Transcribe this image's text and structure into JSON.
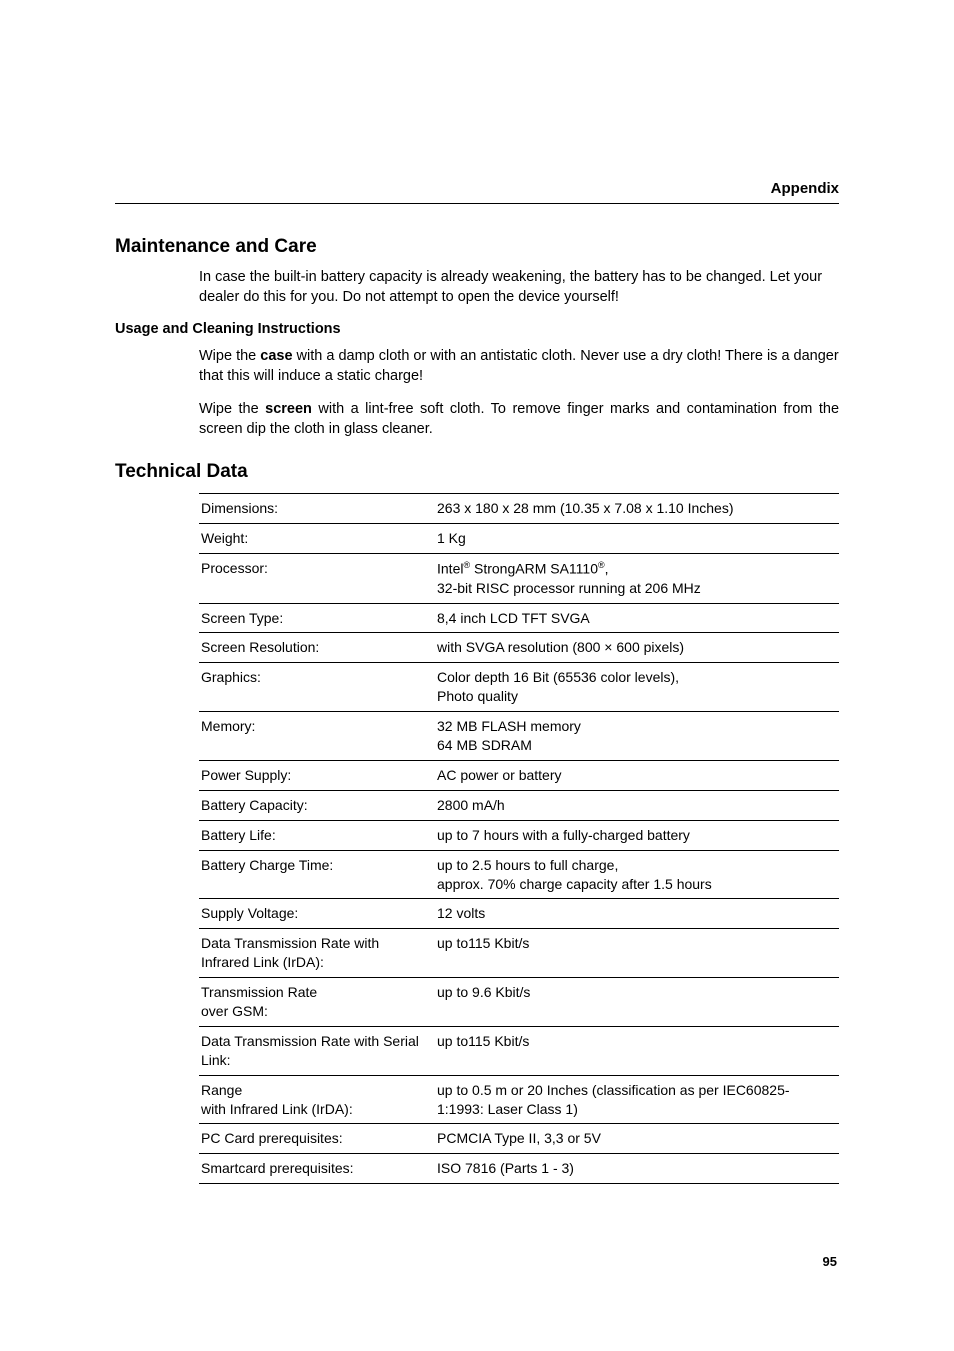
{
  "header": {
    "label": "Appendix"
  },
  "section1": {
    "title": "Maintenance and Care",
    "intro": "In case the built-in battery capacity is already weakening, the battery has to be changed. Let your dealer do this for you. Do not attempt to open the device yourself!",
    "sub_heading": "Usage and Cleaning Instructions",
    "p1_a": "Wipe the ",
    "p1_bold": "case",
    "p1_b": " with a damp cloth or with an antistatic cloth. Never use a dry cloth! There is a danger that this will induce a static charge!",
    "p2_a": "Wipe the ",
    "p2_bold": "screen",
    "p2_b": " with a lint-free soft cloth. To remove finger marks and contamination from the screen dip the cloth in glass cleaner."
  },
  "section2": {
    "title": "Technical Data",
    "rows": [
      {
        "k": "Dimensions:",
        "v": "263 x 180 x 28 mm (10.35 x 7.08 x 1.10 Inches)"
      },
      {
        "k": "Weight:",
        "v": "1 Kg"
      },
      {
        "k": "Processor:",
        "v_html": true,
        "v1": "Intel",
        "v_sup1": "®",
        "v2": " StrongARM SA1110",
        "v_sup2": "®",
        "v3": ",\n32-bit RISC processor running at 206 MHz"
      },
      {
        "k": "Screen Type:",
        "v": "8,4 inch LCD TFT SVGA"
      },
      {
        "k": "Screen Resolution:",
        "v": "with SVGA resolution (800 × 600 pixels)"
      },
      {
        "k": "Graphics:",
        "v": "Color depth 16 Bit (65536 color levels),\nPhoto quality"
      },
      {
        "k": "Memory:",
        "v": "32 MB FLASH memory\n64 MB SDRAM"
      },
      {
        "k": "Power Supply:",
        "v": "AC power or battery"
      },
      {
        "k": "Battery Capacity:",
        "v": "2800 mA/h"
      },
      {
        "k": "Battery Life:",
        "v": "up to 7 hours with a fully-charged battery"
      },
      {
        "k": "Battery Charge Time:",
        "v": "up to 2.5 hours to full charge,\napprox. 70% charge capacity after 1.5 hours"
      },
      {
        "k": "Supply Voltage:",
        "v": "12 volts"
      },
      {
        "k": "Data Transmission Rate with Infrared Link (IrDA):",
        "v": "up to115 Kbit/s"
      },
      {
        "k": "Transmission Rate\nover GSM:",
        "v": "up to 9.6 Kbit/s"
      },
      {
        "k": "Data Transmission Rate with Serial Link:",
        "v": "up to115 Kbit/s"
      },
      {
        "k": "Range\nwith Infrared Link (IrDA):",
        "v": "up to 0.5 m or 20 Inches (classification as per IEC60825-1:1993: Laser Class 1)"
      },
      {
        "k": "PC Card prerequisites:",
        "v": "PCMCIA Type II, 3,3 or 5V"
      },
      {
        "k": "Smartcard prerequisites:",
        "v": "ISO 7816 (Parts 1 - 3)"
      }
    ]
  },
  "page_number": "95"
}
